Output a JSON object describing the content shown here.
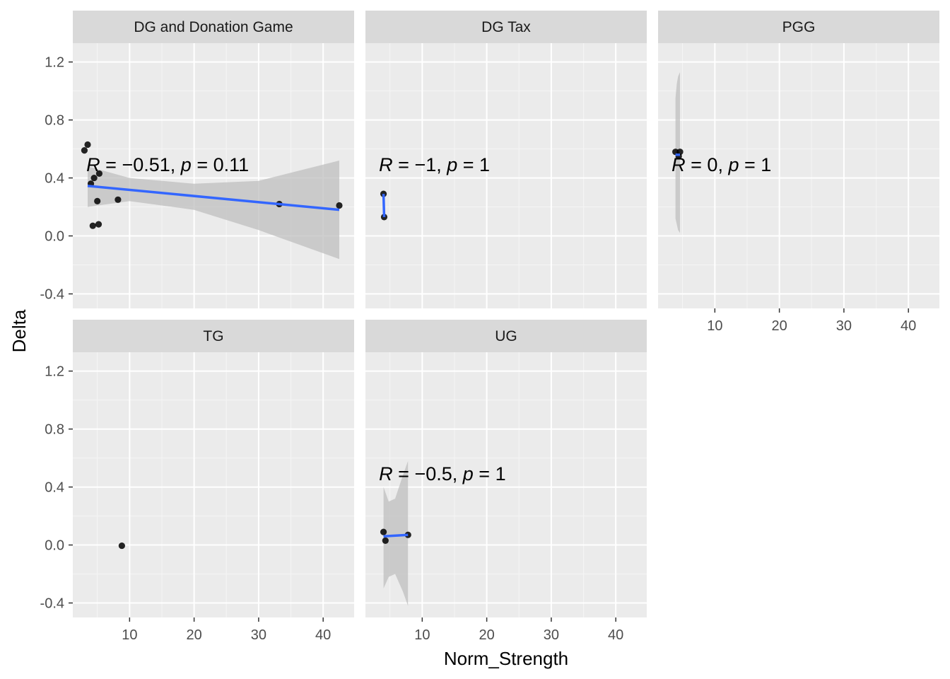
{
  "chart_data": {
    "type": "scatter",
    "xlabel": "Norm_Strength",
    "ylabel": "Delta",
    "xlim": [
      1.2,
      44.8
    ],
    "ylim": [
      -0.5,
      1.33
    ],
    "x_ticks": [
      10,
      20,
      30,
      40
    ],
    "y_ticks": [
      -0.4,
      0.0,
      0.4,
      0.8,
      1.2
    ],
    "x_tick_labels": [
      "10",
      "20",
      "30",
      "40"
    ],
    "y_tick_labels": [
      "-0.4",
      "0.0",
      "0.4",
      "0.8",
      "1.2"
    ],
    "grid": true,
    "facets": [
      {
        "name": "DG and Donation Game",
        "points": [
          {
            "x": 3.0,
            "y": 0.59
          },
          {
            "x": 3.5,
            "y": 0.63
          },
          {
            "x": 4.0,
            "y": 0.36
          },
          {
            "x": 4.5,
            "y": 0.4
          },
          {
            "x": 5.3,
            "y": 0.43
          },
          {
            "x": 5.0,
            "y": 0.24
          },
          {
            "x": 4.3,
            "y": 0.07
          },
          {
            "x": 5.2,
            "y": 0.08
          },
          {
            "x": 8.2,
            "y": 0.25
          },
          {
            "x": 33.2,
            "y": 0.22
          },
          {
            "x": 42.5,
            "y": 0.21
          }
        ],
        "fit": [
          [
            3.5,
            0.345
          ],
          [
            42.5,
            0.18
          ]
        ],
        "band": {
          "x": [
            3.5,
            10,
            20,
            30,
            42.5
          ],
          "upper": [
            0.48,
            0.4,
            0.36,
            0.38,
            0.52
          ],
          "lower": [
            0.2,
            0.24,
            0.18,
            0.04,
            -0.16
          ]
        },
        "annotation": {
          "x": 3.3,
          "y": 0.49,
          "text": [
            "R",
            " = ",
            "−",
            "0.51, ",
            "p",
            " = 0.11"
          ]
        }
      },
      {
        "name": "DG Tax",
        "points": [
          {
            "x": 4.0,
            "y": 0.29
          },
          {
            "x": 4.1,
            "y": 0.13
          }
        ],
        "fit": [
          [
            4.0,
            0.29
          ],
          [
            4.1,
            0.13
          ]
        ],
        "band": null,
        "annotation": {
          "x": 3.3,
          "y": 0.49,
          "text": [
            "R",
            " = ",
            "−",
            "1, ",
            "p",
            " = 1"
          ]
        }
      },
      {
        "name": "PGG",
        "points": [
          {
            "x": 3.9,
            "y": 0.58
          },
          {
            "x": 4.6,
            "y": 0.58
          },
          {
            "x": 4.4,
            "y": 0.55
          }
        ],
        "fit": [
          [
            3.9,
            0.56
          ],
          [
            4.6,
            0.56
          ]
        ],
        "band": {
          "x": [
            3.9,
            4.1,
            4.3,
            4.6
          ],
          "upper": [
            0.95,
            1.05,
            1.1,
            1.13
          ],
          "lower": [
            0.12,
            0.08,
            0.04,
            0.02
          ]
        },
        "annotation": {
          "x": 3.3,
          "y": 0.49,
          "text": [
            "R",
            " = 0, ",
            "",
            "",
            "p",
            " = 1"
          ]
        }
      },
      {
        "name": "TG",
        "points": [
          {
            "x": 8.8,
            "y": -0.005
          }
        ],
        "fit": null,
        "band": null,
        "annotation": null
      },
      {
        "name": "UG",
        "points": [
          {
            "x": 4.0,
            "y": 0.09
          },
          {
            "x": 4.3,
            "y": 0.03
          },
          {
            "x": 7.8,
            "y": 0.07
          }
        ],
        "fit": [
          [
            4.0,
            0.06
          ],
          [
            7.8,
            0.07
          ]
        ],
        "band": {
          "x": [
            4.0,
            4.8,
            5.8,
            7.0,
            7.8
          ],
          "upper": [
            0.4,
            0.3,
            0.32,
            0.48,
            0.58
          ],
          "lower": [
            -0.3,
            -0.22,
            -0.2,
            -0.32,
            -0.42
          ]
        },
        "annotation": {
          "x": 3.3,
          "y": 0.49,
          "text": [
            "R",
            " = ",
            "−",
            "0.5, ",
            "p",
            " = 1"
          ]
        }
      }
    ],
    "colors": {
      "panel_bg": "#ebebeb",
      "strip_bg": "#d9d9d9",
      "grid_major": "#ffffff",
      "grid_minor": "#f5f5f5",
      "point": "#000000",
      "fit_line": "#3366ff",
      "band": "#bfbfbf"
    }
  }
}
